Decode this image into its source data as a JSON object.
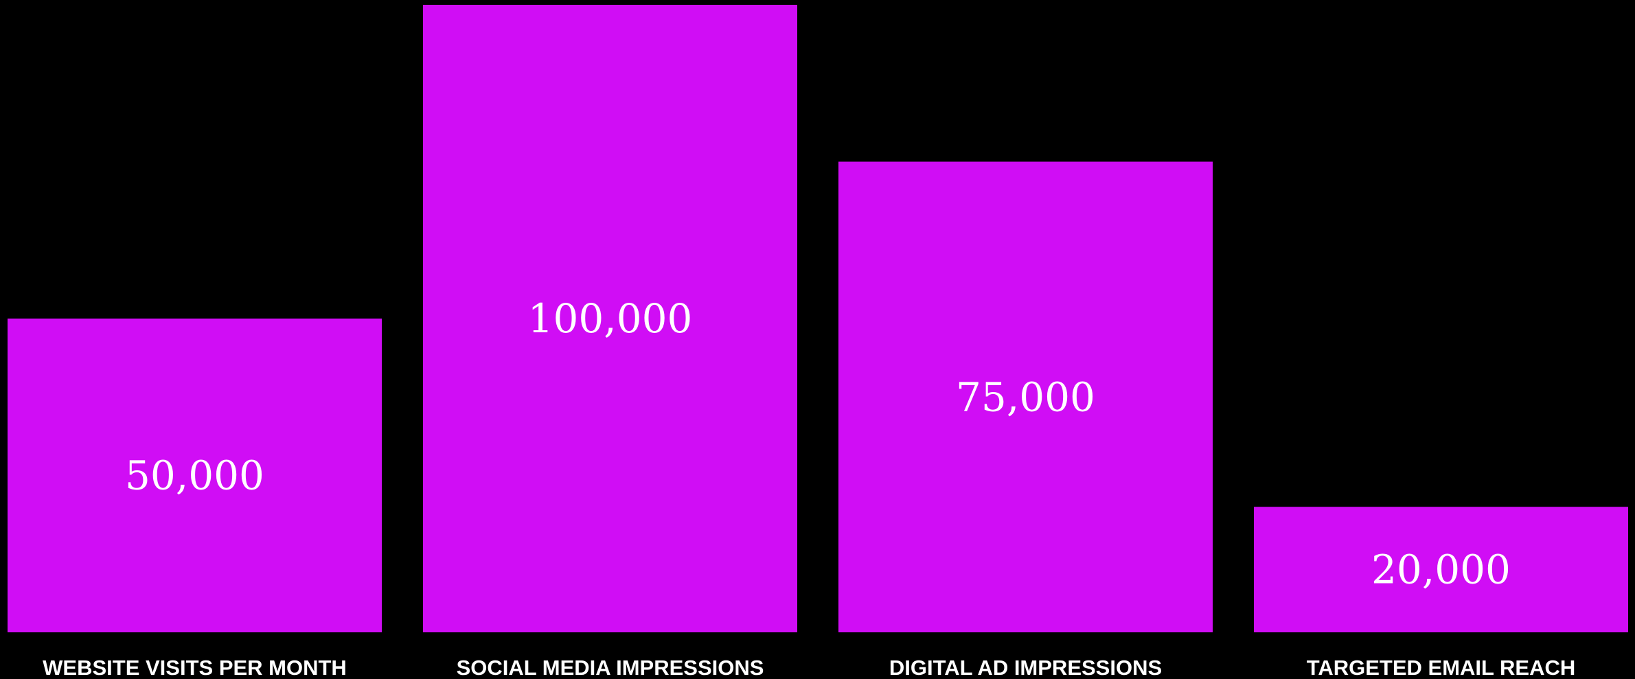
{
  "chart_data": {
    "type": "bar",
    "title": "",
    "xlabel": "",
    "ylabel": "",
    "categories": [
      "WEBSITE VISITS PER MONTH",
      "SOCIAL MEDIA IMPRESSIONS",
      "DIGITAL AD IMPRESSIONS",
      "TARGETED EMAIL REACH"
    ],
    "values": [
      50000,
      100000,
      75000,
      20000
    ],
    "value_labels": [
      "50,000",
      "100,000",
      "75,000",
      "20,000"
    ],
    "ylim": [
      0,
      100000
    ],
    "grid": false,
    "legend": "none",
    "colors": {
      "background": "#000000",
      "bar": "#d00df5",
      "text": "#ffffff"
    }
  }
}
